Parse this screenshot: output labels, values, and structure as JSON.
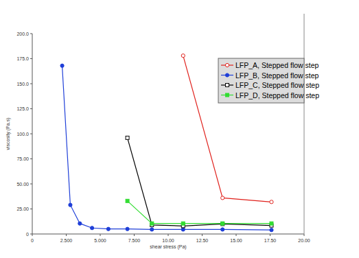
{
  "chart_data": {
    "type": "line",
    "x_label": "shear stress (Pa)",
    "y_label": "viscosity (Pa.s)",
    "x": [
      2.2,
      2.8,
      3.5,
      4.4,
      5.6,
      7.0,
      8.8,
      11.1,
      14.0,
      17.6
    ],
    "xlim": [
      0,
      20
    ],
    "xticks": [
      0,
      {
        "value": 2.5,
        "label": "2.500"
      },
      {
        "value": 5,
        "label": "5.000"
      },
      {
        "value": 7.5,
        "label": "7.500"
      },
      {
        "value": 10,
        "label": "10.00"
      },
      {
        "value": 12.5,
        "label": "12.50"
      },
      {
        "value": 15,
        "label": "15.00"
      },
      {
        "value": 17.5,
        "label": "17.50"
      },
      {
        "value": 20,
        "label": "20.00"
      }
    ],
    "ylim": [
      0,
      200
    ],
    "yticks": [
      0,
      {
        "value": 25,
        "label": "25.00"
      },
      {
        "value": 50,
        "label": "50.00"
      },
      {
        "value": 75,
        "label": "75.00"
      },
      {
        "value": 100,
        "label": "100.0"
      },
      {
        "value": 125,
        "label": "125.0"
      },
      {
        "value": 150,
        "label": "150.0"
      },
      {
        "value": 175,
        "label": "175.0"
      },
      {
        "value": 200,
        "label": "200.0"
      }
    ],
    "grid": false,
    "legend": "upper right",
    "series": [
      {
        "name": "LFP_A, Stepped flow step",
        "color": "#e0201b",
        "marker": "open-circle",
        "values": [
          null,
          null,
          null,
          null,
          null,
          null,
          null,
          178,
          36,
          32
        ]
      },
      {
        "name": "LFP_B, Stepped flow step",
        "color": "#1f3fd8",
        "marker": "circle",
        "values": [
          168,
          29,
          10.5,
          6,
          5,
          5,
          4.5,
          4.5,
          4.5,
          4
        ]
      },
      {
        "name": "LFP_C, Stepped flow step",
        "color": "#000000",
        "marker": "open-square",
        "values": [
          null,
          null,
          null,
          null,
          null,
          96,
          9,
          8,
          10,
          8.5
        ]
      },
      {
        "name": "LFP_D, Stepped flow step",
        "color": "#33dd33",
        "marker": "square",
        "values": [
          null,
          null,
          null,
          null,
          null,
          33,
          10.5,
          10.5,
          10.5,
          10.5
        ]
      }
    ]
  }
}
